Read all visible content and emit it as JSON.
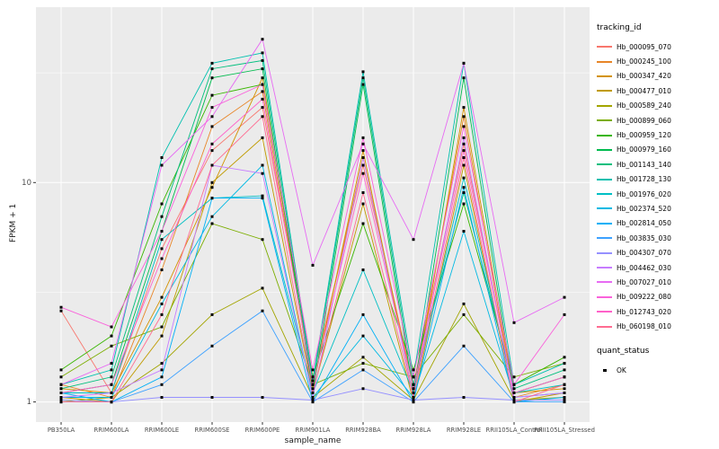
{
  "chart_data": {
    "type": "line",
    "title": "",
    "xlabel": "sample_name",
    "ylabel": "FPKM + 1",
    "y_scale": "log10",
    "y_ticks": [
      1,
      10
    ],
    "y_minor": [
      3.162,
      31.62
    ],
    "ylim": [
      0.81,
      63
    ],
    "grid": true,
    "legend_position": "right",
    "legend_title": "tracking_id",
    "legend2_title": "quant_status",
    "quant_status_items": [
      {
        "label": "OK"
      }
    ],
    "colors": {
      "panel_bg": "#EBEBEB",
      "grid": "#FFFFFF",
      "point": "#000000",
      "tick_text": "#4D4D4D"
    },
    "x": [
      "PB350LA",
      "RRIM600LA",
      "RRIM600LE",
      "RRIM600SE",
      "RRIM600PE",
      "RRIM901LA",
      "RRIM928BA",
      "RRIM928LA",
      "RRIM928LE",
      "RRII105LA_Control",
      "RRII105LA_Stressed"
    ],
    "series": [
      {
        "name": "Hb_000095_070",
        "color": "#F8766D",
        "values": [
          2.6,
          1.1,
          5.0,
          14,
          22,
          1.3,
          12,
          1.2,
          15,
          1.1,
          1.3
        ]
      },
      {
        "name": "Hb_000245_100",
        "color": "#E88526",
        "values": [
          1.2,
          1.05,
          4.0,
          18,
          26,
          1.2,
          13,
          1.15,
          20,
          1.05,
          1.2
        ]
      },
      {
        "name": "Hb_000347_420",
        "color": "#D39200",
        "values": [
          1.15,
          1.1,
          3.0,
          9.5,
          30,
          1.15,
          14,
          1.05,
          22,
          1.1,
          1.15
        ]
      },
      {
        "name": "Hb_000477_010",
        "color": "#C09B00",
        "values": [
          1.05,
          1.0,
          2.0,
          10,
          16,
          1.1,
          8.0,
          1.0,
          12,
          1.0,
          1.1
        ]
      },
      {
        "name": "Hb_000589_240",
        "color": "#A3A500",
        "values": [
          1.0,
          1.05,
          1.5,
          2.5,
          3.3,
          1.05,
          1.6,
          1.02,
          2.8,
          1.02,
          1.05
        ]
      },
      {
        "name": "Hb_000899_060",
        "color": "#7CAE00",
        "values": [
          1.3,
          1.8,
          2.2,
          6.5,
          5.5,
          1.2,
          1.5,
          1.3,
          2.5,
          1.3,
          1.5
        ]
      },
      {
        "name": "Hb_000959_120",
        "color": "#39B600",
        "values": [
          1.4,
          2.0,
          8.0,
          25,
          28,
          1.3,
          6.5,
          1.4,
          8.0,
          1.2,
          1.6
        ]
      },
      {
        "name": "Hb_000979_160",
        "color": "#00BB4E",
        "values": [
          1.1,
          1.2,
          6.0,
          30,
          33,
          1.1,
          28,
          1.1,
          30,
          1.1,
          1.3
        ]
      },
      {
        "name": "Hb_001143_140",
        "color": "#00BF7D",
        "values": [
          1.15,
          1.3,
          7.0,
          33,
          36,
          1.2,
          30,
          1.2,
          9.0,
          1.15,
          1.4
        ]
      },
      {
        "name": "Hb_001728_130",
        "color": "#00C0AF",
        "values": [
          1.2,
          1.4,
          13,
          35,
          39,
          1.25,
          32,
          1.3,
          35,
          1.2,
          1.5
        ]
      },
      {
        "name": "Hb_001976_020",
        "color": "#00BFC4",
        "values": [
          1.1,
          1.1,
          5.5,
          8.5,
          8.7,
          1.1,
          4.0,
          1.1,
          10.5,
          1.1,
          1.2
        ]
      },
      {
        "name": "Hb_002374_520",
        "color": "#00B9E3",
        "values": [
          1.05,
          1.05,
          2.8,
          7.0,
          12,
          1.05,
          2.0,
          1.05,
          6.0,
          1.05,
          1.1
        ]
      },
      {
        "name": "Hb_002814_050",
        "color": "#00B0F6",
        "values": [
          1.1,
          1.0,
          1.3,
          8.5,
          8.5,
          1.0,
          2.5,
          1.0,
          9.5,
          1.0,
          1.05
        ]
      },
      {
        "name": "Hb_003835_030",
        "color": "#3DA1FF",
        "values": [
          1.0,
          1.0,
          1.2,
          1.8,
          2.6,
          1.0,
          1.4,
          1.0,
          1.8,
          1.0,
          1.0
        ]
      },
      {
        "name": "Hb_004307_070",
        "color": "#9590FF",
        "values": [
          1.02,
          1.0,
          1.05,
          1.05,
          1.05,
          1.02,
          1.15,
          1.02,
          1.05,
          1.02,
          1.02
        ]
      },
      {
        "name": "Hb_004462_030",
        "color": "#C77CFF",
        "values": [
          1.05,
          1.1,
          1.4,
          12,
          11,
          1.05,
          13,
          1.05,
          16,
          1.05,
          1.1
        ]
      },
      {
        "name": "Hb_007027_010",
        "color": "#E76BF3",
        "values": [
          1.2,
          1.5,
          12,
          20,
          45,
          4.2,
          15,
          5.5,
          35,
          2.3,
          3.0
        ]
      },
      {
        "name": "Hb_009222_080",
        "color": "#FA62DB",
        "values": [
          2.7,
          2.2,
          6.0,
          22,
          28,
          1.4,
          16,
          1.3,
          18,
          1.2,
          2.5
        ]
      },
      {
        "name": "Hb_012743_020",
        "color": "#FF61C9",
        "values": [
          1.1,
          1.2,
          4.5,
          15,
          24,
          1.2,
          11,
          1.15,
          14,
          1.1,
          1.3
        ]
      },
      {
        "name": "Hb_060198_010",
        "color": "#FF6C91",
        "values": [
          1.0,
          1.0,
          2.5,
          12,
          20,
          1.1,
          9.0,
          1.05,
          13,
          1.0,
          1.2
        ]
      }
    ]
  }
}
